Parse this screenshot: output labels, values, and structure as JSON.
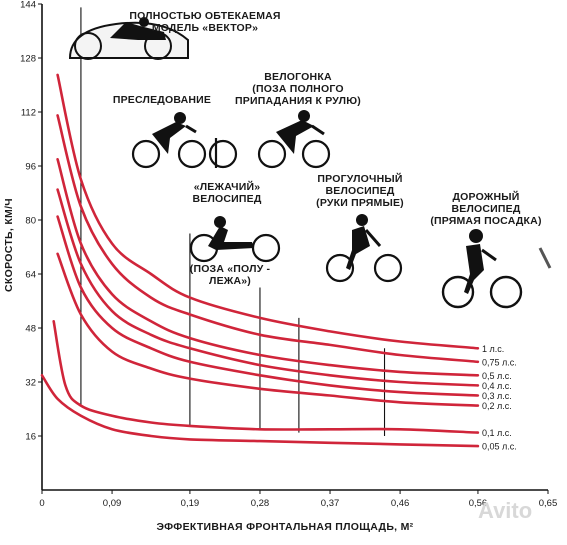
{
  "chart_data": {
    "type": "line",
    "xlabel": "ЭФФЕКТИВНАЯ ФРОНТАЛЬНАЯ ПЛОЩАДЬ, М²",
    "ylabel": "СКОРОСТЬ, КМ/Ч",
    "xlim": [
      0,
      0.65
    ],
    "ylim": [
      0,
      144
    ],
    "x_ticks": [
      "0",
      "0,09",
      "0,19",
      "0,28",
      "0,37",
      "0,46",
      "0,56",
      "0,65"
    ],
    "x_tick_values": [
      0,
      0.09,
      0.19,
      0.28,
      0.37,
      0.46,
      0.56,
      0.65
    ],
    "y_ticks": [
      "16",
      "32",
      "48",
      "64",
      "80",
      "96",
      "112",
      "128",
      "144"
    ],
    "y_tick_values": [
      16,
      32,
      48,
      64,
      80,
      96,
      112,
      128,
      144
    ],
    "line_color": "#d0253a",
    "series": [
      {
        "name": "1 л.с.",
        "x": [
          0.02,
          0.05,
          0.09,
          0.14,
          0.19,
          0.28,
          0.37,
          0.46,
          0.56
        ],
        "values": [
          123,
          92,
          73,
          64,
          57,
          51,
          47,
          44,
          42
        ]
      },
      {
        "name": "0,75 л.с.",
        "x": [
          0.02,
          0.05,
          0.09,
          0.14,
          0.19,
          0.28,
          0.37,
          0.46,
          0.56
        ],
        "values": [
          111,
          84,
          67,
          57,
          52,
          46,
          43,
          40,
          38
        ]
      },
      {
        "name": "0,5 л.с.",
        "x": [
          0.02,
          0.05,
          0.09,
          0.14,
          0.19,
          0.28,
          0.37,
          0.46,
          0.56
        ],
        "values": [
          98,
          73,
          58,
          50,
          45,
          40,
          37,
          35,
          34
        ]
      },
      {
        "name": "0,4 л.с.",
        "x": [
          0.02,
          0.05,
          0.09,
          0.14,
          0.19,
          0.28,
          0.37,
          0.46,
          0.56
        ],
        "values": [
          89,
          67,
          53,
          46,
          42,
          37,
          34,
          32,
          31
        ]
      },
      {
        "name": "0,3 л.с.",
        "x": [
          0.02,
          0.05,
          0.09,
          0.14,
          0.19,
          0.28,
          0.37,
          0.46,
          0.56
        ],
        "values": [
          81,
          60,
          48,
          42,
          38,
          34,
          31,
          29,
          28
        ]
      },
      {
        "name": "0,2 л.с.",
        "x": [
          0.02,
          0.05,
          0.09,
          0.14,
          0.19,
          0.28,
          0.37,
          0.46,
          0.56
        ],
        "values": [
          70,
          52,
          41,
          36,
          33,
          30,
          28,
          26,
          25
        ]
      },
      {
        "name": "0,1 л.с.",
        "x": [
          0.015,
          0.03,
          0.05,
          0.09,
          0.14,
          0.19,
          0.28,
          0.37,
          0.46,
          0.56
        ],
        "values": [
          50,
          31,
          25,
          22,
          20,
          19,
          18,
          18,
          18,
          17
        ]
      },
      {
        "name": "0,05 л.с.",
        "x": [
          0,
          0.02,
          0.05,
          0.09,
          0.14,
          0.19,
          0.28,
          0.37,
          0.46,
          0.56
        ],
        "values": [
          34,
          27,
          22,
          18,
          16,
          15,
          14.5,
          14,
          13.5,
          13
        ]
      }
    ],
    "markers": [
      {
        "x": 0.05,
        "y_from": 25,
        "y_to": 143
      },
      {
        "x": 0.19,
        "y_from": 19,
        "y_to": 76
      },
      {
        "x": 0.28,
        "y_from": 18,
        "y_to": 60
      },
      {
        "x": 0.33,
        "y_from": 17,
        "y_to": 51
      },
      {
        "x": 0.44,
        "y_from": 16,
        "y_to": 42
      }
    ],
    "figure_labels": [
      {
        "id": "vector",
        "lines": [
          "ПОЛНОСТЬЮ ОБТЕКАЕМАЯ",
          "МОДЕЛЬ «ВЕКТОР»"
        ]
      },
      {
        "id": "pursuit",
        "lines": [
          "ПРЕСЛЕДОВАНИЕ"
        ]
      },
      {
        "id": "race",
        "lines": [
          "ВЕЛОГОНКА",
          "(ПОЗА ПОЛНОГО",
          "ПРИПАДАНИЯ К РУЛЮ)"
        ]
      },
      {
        "id": "recumbent",
        "lines": [
          "«ЛЕЖАЧИЙ»",
          "ВЕЛОСИПЕД"
        ]
      },
      {
        "id": "recumbent-pose",
        "lines": [
          "(ПОЗА  «ПОЛУ -",
          "ЛЕЖА»)"
        ]
      },
      {
        "id": "touring",
        "lines": [
          "ПРОГУЛОЧНЫЙ",
          "ВЕЛОСИПЕД",
          "(РУКИ ПРЯМЫЕ)"
        ]
      },
      {
        "id": "road",
        "lines": [
          "ДОРОЖНЫЙ",
          "ВЕЛОСИПЕД",
          "(ПРЯМАЯ ПОСАДКА)"
        ]
      }
    ],
    "grid": false,
    "legend": "right-inline",
    "watermark": "Avito"
  }
}
